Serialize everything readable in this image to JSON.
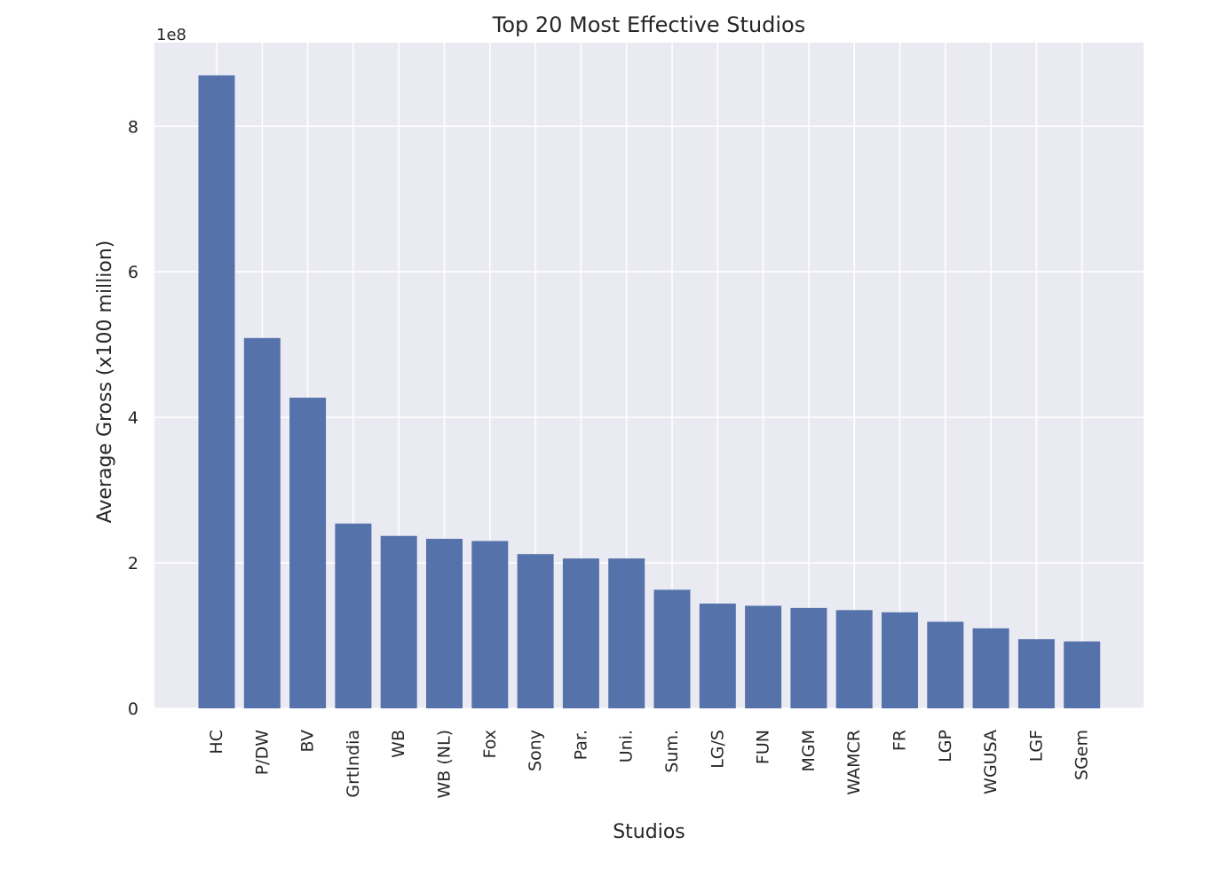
{
  "chart_data": {
    "type": "bar",
    "title": "Top 20 Most Effective Studios",
    "xlabel": "Studios",
    "ylabel": "Average Gross (x100 million)",
    "y_offset_label": "1e8",
    "ylim": [
      0,
      9.15
    ],
    "yticks": [
      0,
      2,
      4,
      6,
      8
    ],
    "grid": true,
    "categories": [
      "HC",
      "P/DW",
      "BV",
      "GrtIndia",
      "WB",
      "WB (NL)",
      "Fox",
      "Sony",
      "Par.",
      "Uni.",
      "Sum.",
      "LG/S",
      "FUN",
      "MGM",
      "WAMCR",
      "FR",
      "LGP",
      "WGUSA",
      "LGF",
      "SGem"
    ],
    "values": [
      8.7,
      5.09,
      4.27,
      2.54,
      2.37,
      2.33,
      2.3,
      2.12,
      2.06,
      2.06,
      1.63,
      1.44,
      1.41,
      1.38,
      1.35,
      1.32,
      1.19,
      1.1,
      0.95,
      0.92
    ],
    "bar_color": "#5572AA",
    "plot_background": "#EAEAF2",
    "grid_color": "#FFFFFF"
  }
}
